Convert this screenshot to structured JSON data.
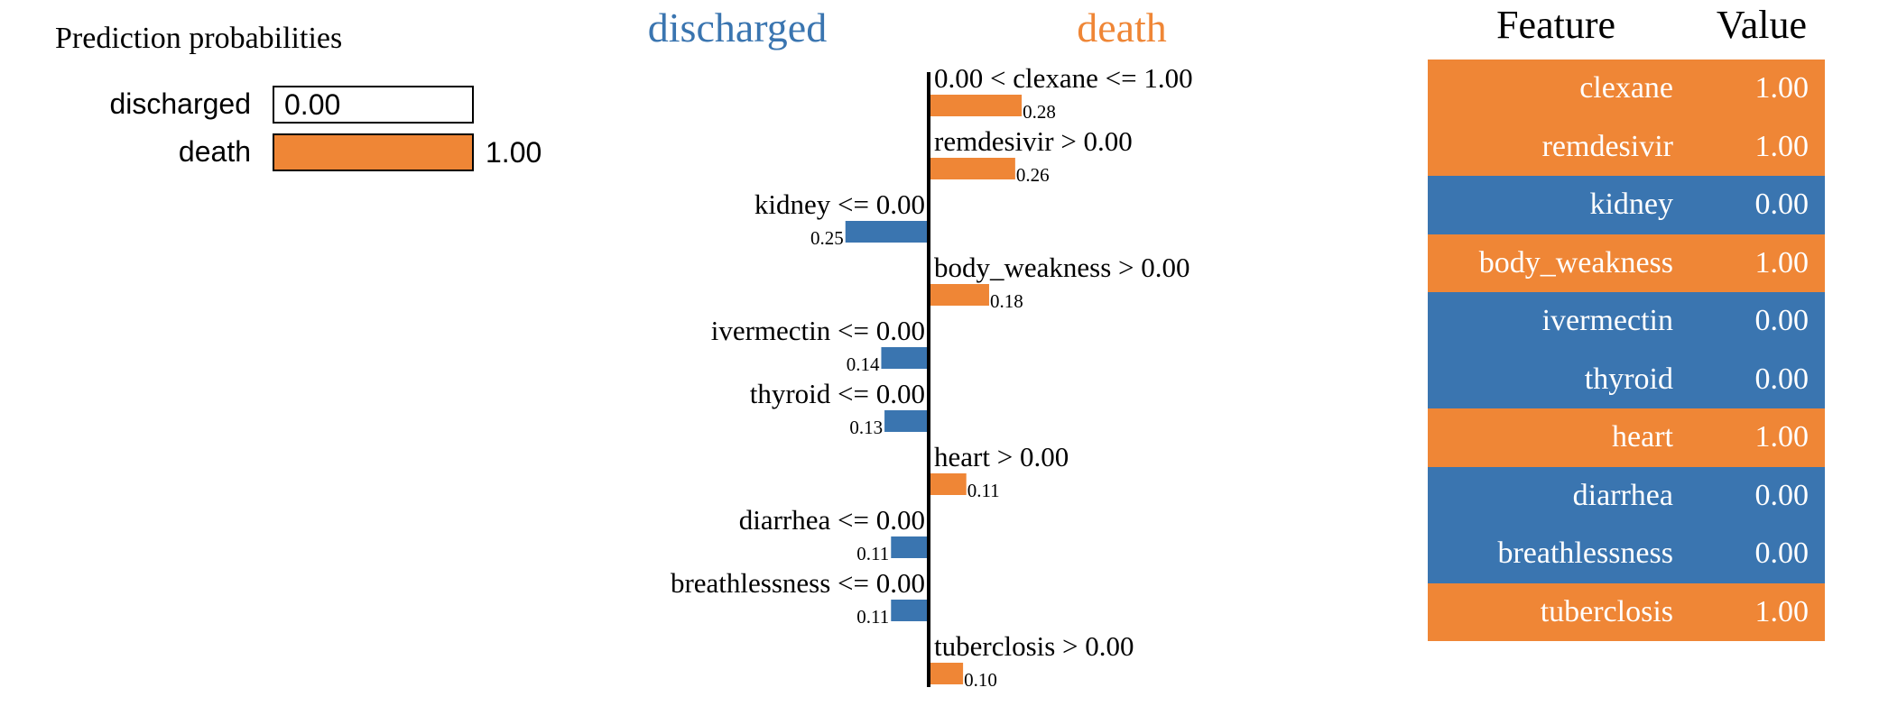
{
  "prediction_probabilities": {
    "title": "Prediction probabilities",
    "items": [
      {
        "label": "discharged",
        "value": 0.0,
        "value_text": "0.00",
        "color": "#3a75b0"
      },
      {
        "label": "death",
        "value": 1.0,
        "value_text": "1.00",
        "color": "#ef8636"
      }
    ]
  },
  "explanation": {
    "negative_class": "discharged",
    "positive_class": "death",
    "negative_color": "#3a75b0",
    "positive_color": "#ef8636"
  },
  "chart_data": {
    "type": "bar",
    "orientation": "horizontal",
    "categories": [
      "0.00 < clexane <= 1.00",
      "remdesivir > 0.00",
      "kidney <= 0.00",
      "body_weakness > 0.00",
      "ivermectin <= 0.00",
      "thyroid <= 0.00",
      "heart > 0.00",
      "diarrhea <= 0.00",
      "breathlessness <= 0.00",
      "tuberclosis > 0.00"
    ],
    "values": [
      0.28,
      0.26,
      -0.25,
      0.18,
      -0.14,
      -0.13,
      0.11,
      -0.11,
      -0.11,
      0.1
    ],
    "value_labels": [
      "0.28",
      "0.26",
      "0.25",
      "0.18",
      "0.14",
      "0.13",
      "0.11",
      "0.11",
      "0.11",
      "0.10"
    ]
  },
  "feature_table": {
    "headers": {
      "feature": "Feature",
      "value": "Value"
    },
    "rows": [
      {
        "feature": "clexane",
        "value": "1.00",
        "class": "death"
      },
      {
        "feature": "remdesivir",
        "value": "1.00",
        "class": "death"
      },
      {
        "feature": "kidney",
        "value": "0.00",
        "class": "discharged"
      },
      {
        "feature": "body_weakness",
        "value": "1.00",
        "class": "death"
      },
      {
        "feature": "ivermectin",
        "value": "0.00",
        "class": "discharged"
      },
      {
        "feature": "thyroid",
        "value": "0.00",
        "class": "discharged"
      },
      {
        "feature": "heart",
        "value": "1.00",
        "class": "death"
      },
      {
        "feature": "diarrhea",
        "value": "0.00",
        "class": "discharged"
      },
      {
        "feature": "breathlessness",
        "value": "0.00",
        "class": "discharged"
      },
      {
        "feature": "tuberclosis",
        "value": "1.00",
        "class": "death"
      }
    ]
  }
}
